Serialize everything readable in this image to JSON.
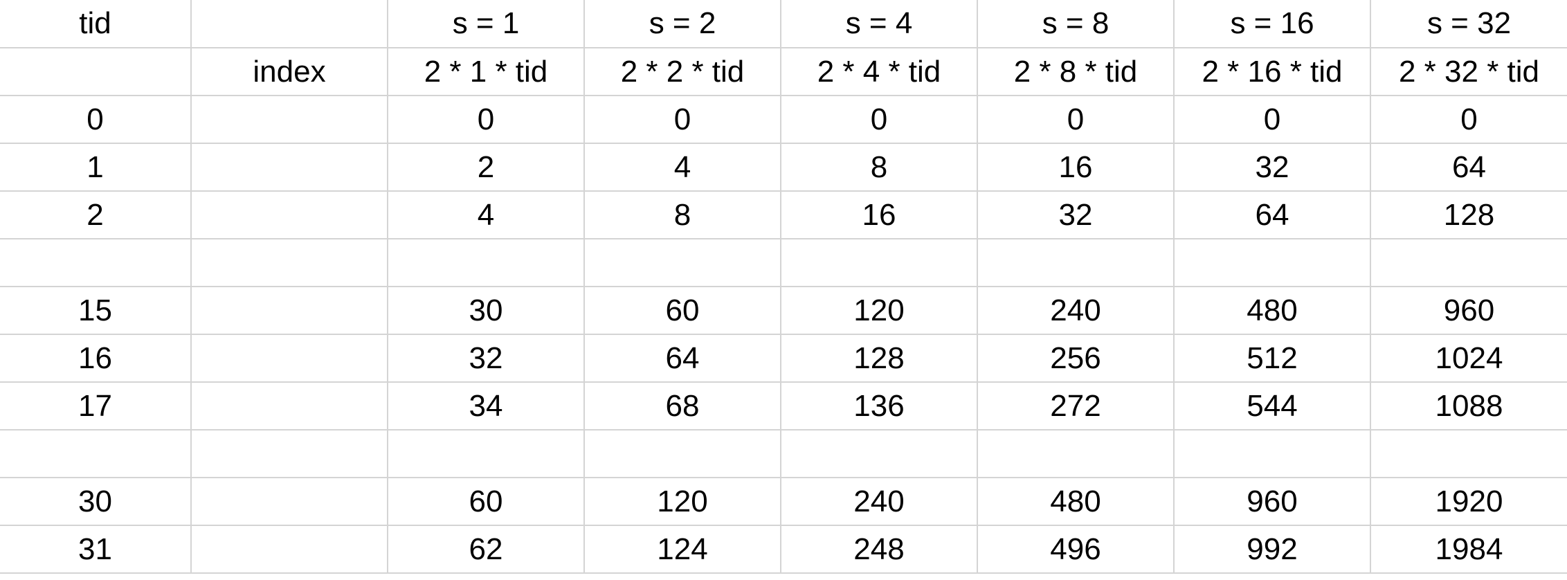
{
  "colors": {
    "ok": "#4ba82e",
    "bad": "#c00000",
    "gridline": "#d4d4d4",
    "text": "#000000"
  },
  "header": {
    "row1": [
      "tid",
      "",
      "s = 1",
      "s = 2",
      "s = 4",
      "s = 8",
      "s = 16",
      "s = 32"
    ],
    "row2": [
      "",
      "index",
      "2 * 1 * tid",
      "2 * 2 * tid",
      "2 * 4 * tid",
      "2 * 8 * tid",
      "2 * 16 * tid",
      "2 * 32 * tid"
    ]
  },
  "rows": [
    {
      "tid": "0",
      "index": "",
      "values": [
        "0",
        "0",
        "0",
        "0",
        "0",
        "0"
      ],
      "status": [
        "ok",
        "ok",
        "ok",
        "ok",
        "ok",
        "ok"
      ]
    },
    {
      "tid": "1",
      "index": "",
      "values": [
        "2",
        "4",
        "8",
        "16",
        "32",
        "64"
      ],
      "status": [
        "ok",
        "ok",
        "ok",
        "ok",
        "ok",
        "ok"
      ]
    },
    {
      "tid": "2",
      "index": "",
      "values": [
        "4",
        "8",
        "16",
        "32",
        "64",
        "128"
      ],
      "status": [
        "ok",
        "ok",
        "ok",
        "ok",
        "ok",
        "ok"
      ]
    },
    {
      "tid": "",
      "index": "",
      "values": [
        "",
        "",
        "",
        "",
        "",
        ""
      ],
      "status": [
        "ok",
        "ok",
        "ok",
        "ok",
        "ok",
        "ok"
      ]
    },
    {
      "tid": "15",
      "index": "",
      "values": [
        "30",
        "60",
        "120",
        "240",
        "480",
        "960"
      ],
      "status": [
        "ok",
        "ok",
        "ok",
        "ok",
        "ok",
        "bad"
      ]
    },
    {
      "tid": "16",
      "index": "",
      "values": [
        "32",
        "64",
        "128",
        "256",
        "512",
        "1024"
      ],
      "status": [
        "ok",
        "ok",
        "ok",
        "ok",
        "bad",
        "bad"
      ]
    },
    {
      "tid": "17",
      "index": "",
      "values": [
        "34",
        "68",
        "136",
        "272",
        "544",
        "1088"
      ],
      "status": [
        "ok",
        "ok",
        "ok",
        "ok",
        "bad",
        "bad"
      ]
    },
    {
      "tid": "",
      "index": "",
      "values": [
        "",
        "",
        "",
        "",
        "",
        ""
      ],
      "status": [
        "ok",
        "ok",
        "ok",
        "ok",
        "ok",
        "ok"
      ]
    },
    {
      "tid": "30",
      "index": "",
      "values": [
        "60",
        "120",
        "240",
        "480",
        "960",
        "1920"
      ],
      "status": [
        "ok",
        "ok",
        "ok",
        "ok",
        "bad",
        "bad"
      ]
    },
    {
      "tid": "31",
      "index": "",
      "values": [
        "62",
        "124",
        "248",
        "496",
        "992",
        "1984"
      ],
      "status": [
        "ok",
        "ok",
        "ok",
        "ok",
        "bad",
        "bad"
      ]
    }
  ]
}
